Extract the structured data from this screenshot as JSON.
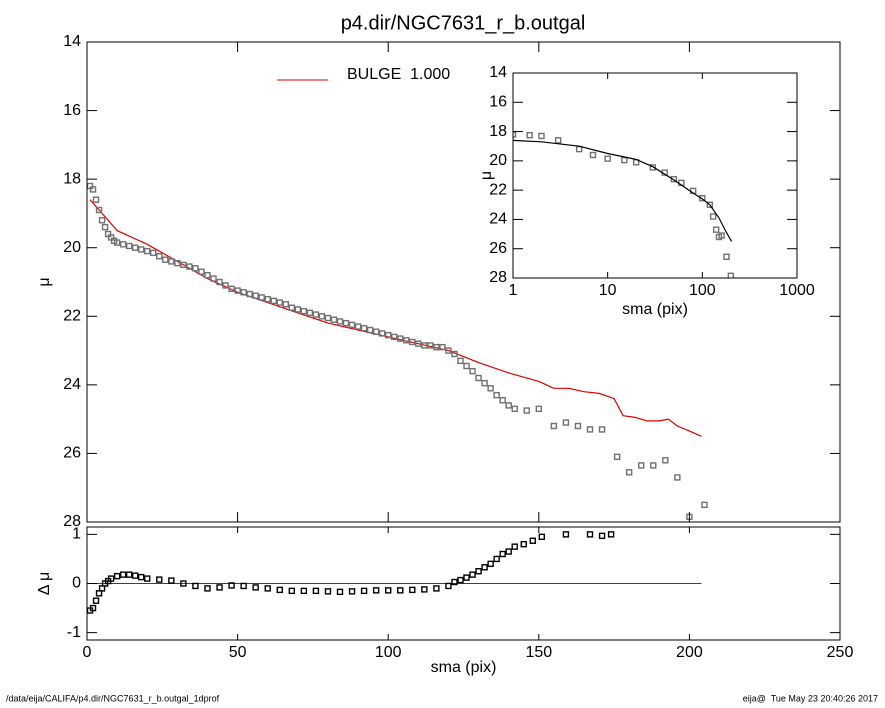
{
  "title": "p4.dir/NGC7631_r_b.outgal",
  "footer": {
    "left": "/data/eija/CALIFA/p4.dir/NGC7631_r_b.outgal_1dprof",
    "right": "eija@  Tue May 23 20:40:26 2017"
  },
  "chart_data": [
    {
      "type": "line",
      "ylabel": "μ",
      "xlim": [
        0,
        250
      ],
      "ylim": [
        14,
        28
      ],
      "y_reversed": true,
      "yticks": [
        14,
        16,
        18,
        20,
        22,
        24,
        26,
        28
      ],
      "legend": "top-left",
      "series": [
        {
          "name": "BULGE  1.000",
          "type": "line",
          "color": "#e00000",
          "x": [
            1,
            5,
            10,
            20,
            30,
            40,
            50,
            60,
            70,
            80,
            90,
            100,
            110,
            120,
            130,
            140,
            150,
            155,
            160,
            165,
            170,
            175,
            178,
            182,
            186,
            190,
            193,
            196,
            200,
            204
          ],
          "values": [
            18.6,
            19.0,
            19.5,
            19.9,
            20.4,
            20.9,
            21.3,
            21.6,
            21.9,
            22.2,
            22.4,
            22.6,
            22.8,
            23.0,
            23.35,
            23.65,
            23.9,
            24.1,
            24.1,
            24.2,
            24.25,
            24.4,
            24.9,
            24.95,
            25.05,
            25.05,
            25.0,
            25.2,
            25.35,
            25.5
          ]
        },
        {
          "type": "scatter",
          "color": "#707070",
          "x": [
            1,
            2,
            3,
            4,
            5,
            6,
            7,
            8,
            9,
            10,
            12,
            14,
            16,
            18,
            20,
            22,
            24,
            26,
            28,
            30,
            32,
            34,
            36,
            38,
            40,
            42,
            44,
            46,
            48,
            50,
            52,
            54,
            56,
            58,
            60,
            62,
            64,
            66,
            68,
            70,
            72,
            74,
            76,
            78,
            80,
            82,
            84,
            86,
            88,
            90,
            92,
            94,
            96,
            98,
            100,
            102,
            104,
            106,
            108,
            110,
            112,
            114,
            116,
            118,
            120,
            122,
            124,
            126,
            128,
            130,
            132,
            134,
            136,
            138,
            140,
            142,
            146,
            150,
            155,
            159,
            163,
            167,
            171,
            176,
            180,
            184,
            188,
            192,
            196,
            200,
            205
          ],
          "values": [
            18.2,
            18.3,
            18.6,
            18.9,
            19.2,
            19.4,
            19.6,
            19.7,
            19.8,
            19.85,
            19.9,
            19.95,
            20.0,
            20.05,
            20.1,
            20.15,
            20.25,
            20.35,
            20.4,
            20.45,
            20.5,
            20.55,
            20.6,
            20.7,
            20.8,
            20.9,
            21.0,
            21.1,
            21.2,
            21.25,
            21.3,
            21.35,
            21.4,
            21.45,
            21.5,
            21.55,
            21.6,
            21.65,
            21.75,
            21.8,
            21.85,
            21.9,
            21.95,
            22.0,
            22.05,
            22.1,
            22.15,
            22.2,
            22.25,
            22.3,
            22.35,
            22.4,
            22.45,
            22.5,
            22.55,
            22.6,
            22.65,
            22.7,
            22.75,
            22.8,
            22.85,
            22.85,
            22.9,
            22.9,
            23.0,
            23.1,
            23.3,
            23.45,
            23.6,
            23.8,
            23.95,
            24.1,
            24.3,
            24.45,
            24.6,
            24.7,
            24.75,
            24.7,
            25.2,
            25.1,
            25.2,
            25.3,
            25.3,
            26.1,
            26.55,
            26.35,
            26.35,
            26.2,
            26.7,
            27.85,
            27.5
          ]
        }
      ]
    },
    {
      "type": "scatter",
      "ylabel": "Δ μ",
      "xlabel": "sma (pix)",
      "xlim": [
        0,
        250
      ],
      "ylim": [
        -1.15,
        1.15
      ],
      "xticks": [
        0,
        50,
        100,
        150,
        200,
        250
      ],
      "yticks": [
        -1,
        0,
        1
      ],
      "reference_line": {
        "value": 0,
        "x": [
          0,
          204
        ]
      },
      "series": [
        {
          "type": "scatter",
          "color": "#000000",
          "x": [
            1,
            2,
            3,
            4,
            5,
            6,
            7,
            8,
            10,
            12,
            14,
            16,
            18,
            20,
            24,
            28,
            32,
            36,
            40,
            44,
            48,
            52,
            56,
            60,
            64,
            68,
            72,
            76,
            80,
            84,
            88,
            92,
            96,
            100,
            104,
            108,
            112,
            116,
            120,
            122,
            124,
            126,
            128,
            130,
            132,
            134,
            136,
            138,
            140,
            142,
            145,
            148,
            151,
            159,
            167,
            171,
            174
          ],
          "values": [
            -0.55,
            -0.5,
            -0.35,
            -0.2,
            -0.1,
            0.0,
            0.05,
            0.1,
            0.15,
            0.18,
            0.18,
            0.16,
            0.13,
            0.1,
            0.08,
            0.06,
            0.0,
            -0.05,
            -0.1,
            -0.08,
            -0.04,
            -0.05,
            -0.08,
            -0.1,
            -0.13,
            -0.15,
            -0.15,
            -0.15,
            -0.16,
            -0.17,
            -0.16,
            -0.15,
            -0.14,
            -0.14,
            -0.14,
            -0.13,
            -0.12,
            -0.1,
            -0.05,
            0.03,
            0.07,
            0.12,
            0.18,
            0.25,
            0.33,
            0.4,
            0.5,
            0.6,
            0.65,
            0.75,
            0.8,
            0.87,
            0.95,
            1.0,
            1.0,
            0.97,
            1.0
          ]
        }
      ]
    },
    {
      "type": "line",
      "xlog": true,
      "ylabel": "μ",
      "xlabel": "sma (pix)",
      "xlim": [
        1,
        1000
      ],
      "ylim": [
        14,
        28
      ],
      "y_reversed": true,
      "xticks": [
        1,
        10,
        100,
        1000
      ],
      "yticks": [
        14,
        16,
        18,
        20,
        22,
        24,
        26,
        28
      ],
      "series": [
        {
          "type": "scatter",
          "color": "#707070",
          "x": [
            1,
            1.5,
            2,
            3,
            5,
            7,
            10,
            15,
            20,
            30,
            40,
            50,
            60,
            80,
            100,
            120,
            130,
            140,
            150,
            160,
            180,
            200
          ],
          "values": [
            18.2,
            18.25,
            18.3,
            18.6,
            19.2,
            19.6,
            19.85,
            19.95,
            20.1,
            20.45,
            20.8,
            21.25,
            21.5,
            22.05,
            22.55,
            23.0,
            23.8,
            24.7,
            25.2,
            25.1,
            26.55,
            27.85
          ]
        },
        {
          "type": "line",
          "color": "#000000",
          "x": [
            1,
            2,
            5,
            10,
            20,
            30,
            50,
            80,
            100,
            120,
            150,
            180,
            204
          ],
          "values": [
            18.6,
            18.7,
            19.0,
            19.5,
            19.9,
            20.4,
            21.3,
            22.2,
            22.6,
            23.0,
            23.9,
            24.9,
            25.5
          ]
        }
      ]
    }
  ]
}
